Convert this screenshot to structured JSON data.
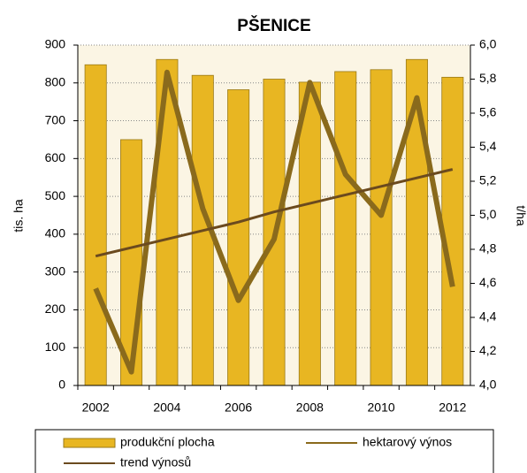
{
  "chart_data": {
    "type": "bar_line",
    "title": "PŠENICE",
    "categories": [
      "2002",
      null,
      "2004",
      null,
      "2006",
      null,
      "2008",
      null,
      "2010",
      null,
      "2012"
    ],
    "y_label": "tis. ha",
    "y2_label": "t/ha",
    "series": [
      {
        "name": "produkční plocha",
        "type": "bar",
        "color": "#e8b622",
        "values": [
          848,
          650,
          862,
          820,
          782,
          810,
          802,
          830,
          835,
          862,
          815
        ]
      },
      {
        "name": "hektarový výnos",
        "type": "line",
        "axis": "y2",
        "color": "#8a6a1c",
        "values": [
          4.57,
          4.08,
          5.84,
          5.04,
          4.5,
          4.86,
          5.78,
          5.24,
          5.0,
          5.69,
          4.58
        ]
      },
      {
        "name": "trend výnosů",
        "type": "line",
        "axis": "y2",
        "color": "#6b4a1e",
        "values": [
          4.76,
          4.81,
          4.86,
          4.91,
          4.96,
          5.02,
          5.07,
          5.12,
          5.17,
          5.22,
          5.27
        ]
      }
    ],
    "ylim": [
      0,
      900
    ],
    "yticks": [
      0,
      100,
      200,
      300,
      400,
      500,
      600,
      700,
      800,
      900
    ],
    "y2lim": [
      4.0,
      6.0
    ],
    "y2ticks": [
      {
        "value": 4.0,
        "label": "4,0"
      },
      {
        "value": 4.2,
        "label": "4,2"
      },
      {
        "value": 4.4,
        "label": "4,4"
      },
      {
        "value": 4.6,
        "label": "4,6"
      },
      {
        "value": 4.8,
        "label": "4,8"
      },
      {
        "value": 5.0,
        "label": "5,0"
      },
      {
        "value": 5.2,
        "label": "5,2"
      },
      {
        "value": 5.4,
        "label": "5,4"
      },
      {
        "value": 5.6,
        "label": "5,6"
      },
      {
        "value": 5.8,
        "label": "5,8"
      },
      {
        "value": 6.0,
        "label": "6,0"
      }
    ],
    "grid": true,
    "legend": "bottom"
  }
}
